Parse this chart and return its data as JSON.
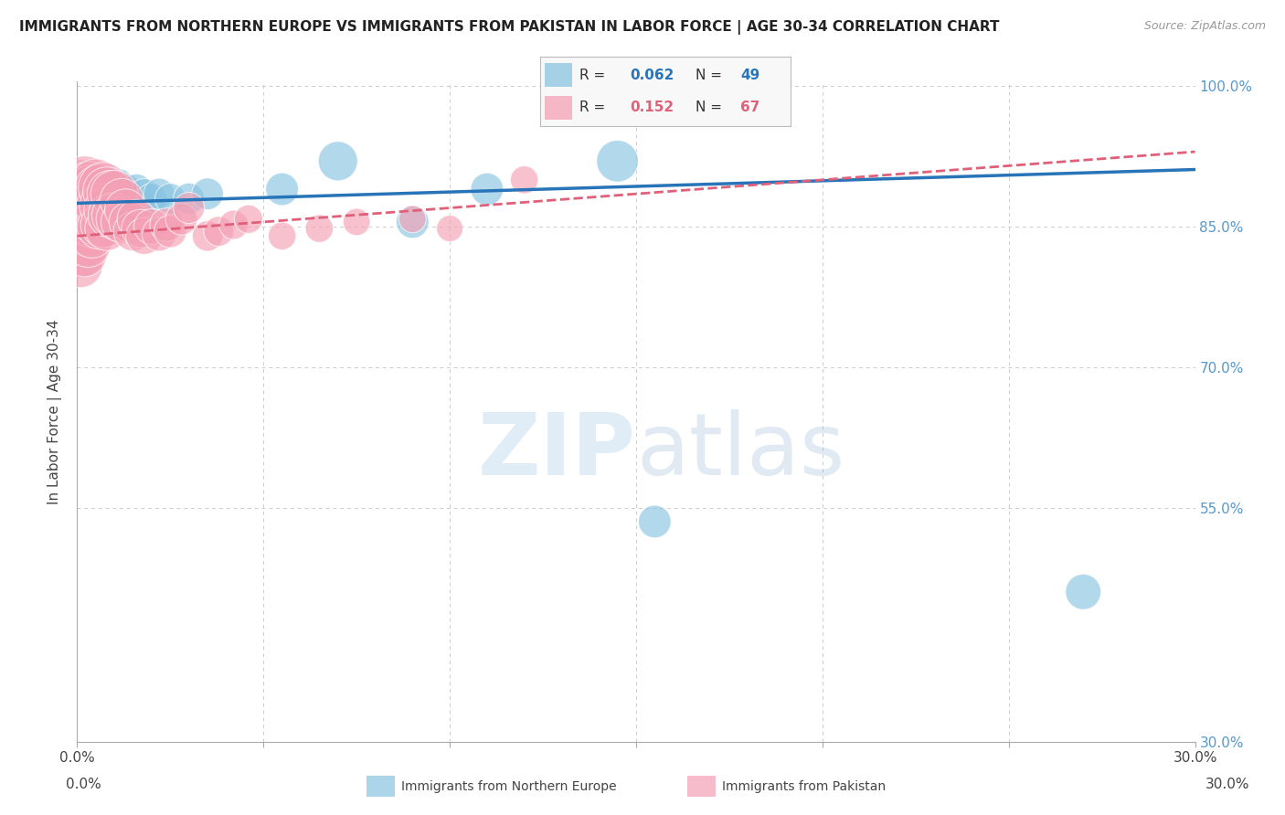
{
  "title": "IMMIGRANTS FROM NORTHERN EUROPE VS IMMIGRANTS FROM PAKISTAN IN LABOR FORCE | AGE 30-34 CORRELATION CHART",
  "source": "Source: ZipAtlas.com",
  "ylabel": "In Labor Force | Age 30-34",
  "xlim": [
    0.0,
    0.3
  ],
  "ylim": [
    0.3,
    1.005
  ],
  "x_ticks": [
    0.0,
    0.05,
    0.1,
    0.15,
    0.2,
    0.25,
    0.3
  ],
  "x_tick_labels": [
    "0.0%",
    "",
    "",
    "",
    "",
    "",
    "30.0%"
  ],
  "y_ticks": [
    0.3,
    0.55,
    0.7,
    0.85,
    1.0
  ],
  "y_tick_labels": [
    "30.0%",
    "55.0%",
    "70.0%",
    "85.0%",
    "100.0%"
  ],
  "legend_R1": "0.062",
  "legend_N1": "49",
  "legend_R2": "0.152",
  "legend_N2": "67",
  "blue_color": "#89c4e1",
  "pink_color": "#f4a0b5",
  "blue_line_color": "#2874b8",
  "pink_line_color": "#e0607a",
  "watermark_zip": "ZIP",
  "watermark_atlas": "atlas",
  "grid_color": "#cccccc",
  "bg_color": "#ffffff",
  "right_y_color": "#5599cc",
  "blue_trend_slope": 0.12,
  "blue_trend_intercept": 0.875,
  "pink_trend_slope": 0.3,
  "pink_trend_intercept": 0.84,
  "blue_x": [
    0.001,
    0.001,
    0.001,
    0.002,
    0.002,
    0.002,
    0.002,
    0.002,
    0.003,
    0.003,
    0.003,
    0.003,
    0.004,
    0.004,
    0.004,
    0.004,
    0.005,
    0.005,
    0.005,
    0.005,
    0.006,
    0.006,
    0.007,
    0.007,
    0.008,
    0.008,
    0.009,
    0.01,
    0.01,
    0.011,
    0.012,
    0.013,
    0.014,
    0.015,
    0.016,
    0.017,
    0.018,
    0.02,
    0.022,
    0.025,
    0.03,
    0.035,
    0.055,
    0.07,
    0.09,
    0.11,
    0.145,
    0.155,
    0.27
  ],
  "blue_y": [
    0.89,
    0.88,
    0.87,
    0.9,
    0.89,
    0.88,
    0.87,
    0.86,
    0.895,
    0.885,
    0.875,
    0.865,
    0.89,
    0.88,
    0.87,
    0.86,
    0.9,
    0.89,
    0.88,
    0.87,
    0.89,
    0.88,
    0.89,
    0.875,
    0.895,
    0.875,
    0.895,
    0.89,
    0.87,
    0.895,
    0.885,
    0.89,
    0.88,
    0.87,
    0.89,
    0.875,
    0.885,
    0.88,
    0.885,
    0.88,
    0.88,
    0.885,
    0.89,
    0.92,
    0.855,
    0.89,
    0.92,
    0.535,
    0.46
  ],
  "blue_sizes": [
    40,
    36,
    32,
    50,
    44,
    40,
    36,
    32,
    48,
    44,
    40,
    36,
    48,
    44,
    40,
    36,
    52,
    48,
    44,
    40,
    48,
    44,
    50,
    44,
    52,
    44,
    52,
    50,
    44,
    52,
    48,
    50,
    48,
    44,
    48,
    46,
    48,
    48,
    50,
    48,
    50,
    52,
    55,
    80,
    55,
    55,
    90,
    55,
    65
  ],
  "pink_x": [
    0.001,
    0.001,
    0.001,
    0.001,
    0.001,
    0.001,
    0.001,
    0.001,
    0.002,
    0.002,
    0.002,
    0.002,
    0.002,
    0.002,
    0.002,
    0.003,
    0.003,
    0.003,
    0.003,
    0.003,
    0.003,
    0.004,
    0.004,
    0.004,
    0.004,
    0.004,
    0.005,
    0.005,
    0.005,
    0.006,
    0.006,
    0.006,
    0.007,
    0.007,
    0.007,
    0.008,
    0.008,
    0.008,
    0.009,
    0.009,
    0.01,
    0.01,
    0.011,
    0.012,
    0.012,
    0.013,
    0.014,
    0.015,
    0.016,
    0.017,
    0.018,
    0.02,
    0.022,
    0.024,
    0.025,
    0.028,
    0.03,
    0.035,
    0.038,
    0.042,
    0.046,
    0.055,
    0.065,
    0.075,
    0.09,
    0.1,
    0.12
  ],
  "pink_y": [
    0.89,
    0.878,
    0.866,
    0.855,
    0.844,
    0.832,
    0.82,
    0.808,
    0.895,
    0.882,
    0.87,
    0.858,
    0.845,
    0.832,
    0.82,
    0.89,
    0.878,
    0.866,
    0.854,
    0.842,
    0.83,
    0.888,
    0.876,
    0.864,
    0.852,
    0.84,
    0.895,
    0.875,
    0.855,
    0.89,
    0.87,
    0.85,
    0.892,
    0.872,
    0.852,
    0.888,
    0.868,
    0.848,
    0.885,
    0.862,
    0.885,
    0.862,
    0.858,
    0.878,
    0.855,
    0.868,
    0.855,
    0.845,
    0.858,
    0.848,
    0.84,
    0.85,
    0.842,
    0.852,
    0.845,
    0.858,
    0.87,
    0.84,
    0.845,
    0.852,
    0.858,
    0.84,
    0.848,
    0.855,
    0.858,
    0.848,
    0.9
  ],
  "pink_sizes": [
    180,
    165,
    150,
    138,
    126,
    115,
    105,
    96,
    168,
    155,
    143,
    132,
    121,
    110,
    100,
    155,
    143,
    132,
    121,
    110,
    100,
    143,
    132,
    121,
    110,
    100,
    135,
    122,
    110,
    128,
    116,
    105,
    128,
    116,
    105,
    120,
    110,
    100,
    115,
    105,
    115,
    105,
    100,
    100,
    90,
    90,
    85,
    80,
    80,
    75,
    70,
    65,
    60,
    58,
    55,
    52,
    50,
    48,
    46,
    44,
    42,
    40,
    40,
    38,
    38,
    36,
    40
  ]
}
